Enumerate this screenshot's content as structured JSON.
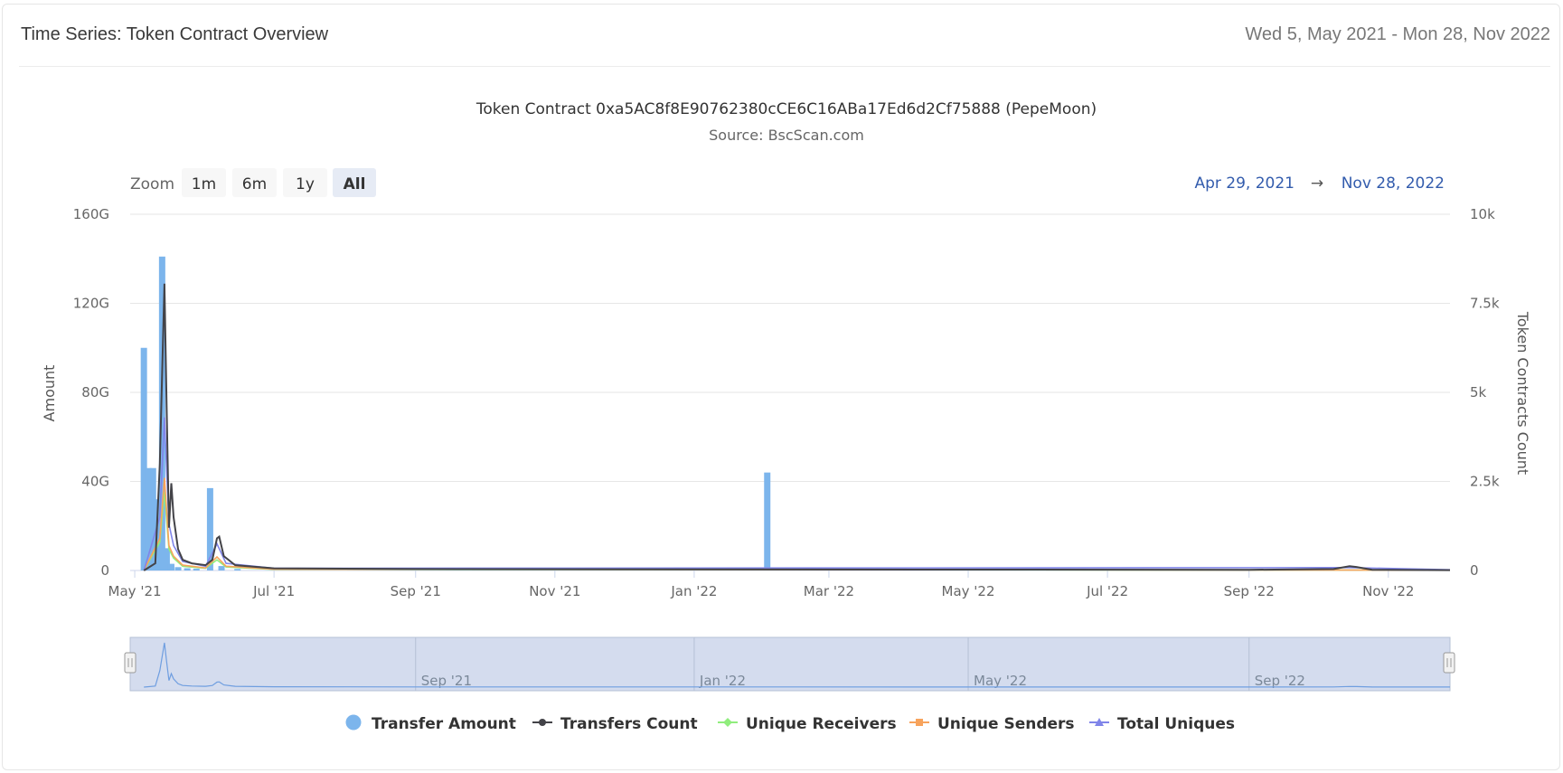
{
  "panel": {
    "title": "Time Series: Token Contract Overview",
    "date_range": "Wed 5, May 2021 - Mon 28, Nov 2022"
  },
  "zoom": {
    "label": "Zoom",
    "buttons": [
      "1m",
      "6m",
      "1y",
      "All"
    ],
    "selected": "All"
  },
  "range_selector": {
    "from": "Apr 29, 2021",
    "arrow": "→",
    "to": "Nov 28, 2022"
  },
  "navigator": {
    "labels": [
      "Sep '21",
      "Jan '22",
      "May '22",
      "Sep '22"
    ]
  },
  "colors": {
    "transfer_amount": "#7cb5ec",
    "transfers_count": "#434348",
    "unique_receivers": "#90ed7d",
    "unique_senders": "#f7a35c",
    "total_uniques": "#8085e9"
  },
  "chart_data": {
    "type": "bar",
    "title": "Token Contract 0xa5AC8f8E90762380cCE6C16ABa17Ed6d2Cf75888 (PepeMoon)",
    "subtitle": "Source: BscScan.com",
    "x_start": "2021-04-29",
    "x_end": "2022-11-28",
    "x_tick_labels": [
      "May '21",
      "Jul '21",
      "Sep '21",
      "Nov '21",
      "Jan '22",
      "Mar '22",
      "May '22",
      "Jul '22",
      "Sep '22",
      "Nov '22"
    ],
    "y_left": {
      "label": "Amount",
      "range": [
        0,
        160000000000
      ],
      "tick_labels": [
        "0",
        "40G",
        "80G",
        "120G",
        "160G"
      ]
    },
    "y_right": {
      "label": "Token Contracts Count",
      "range": [
        0,
        10000
      ],
      "tick_labels": [
        "0",
        "2.5k",
        "5k",
        "7.5k",
        "10k"
      ]
    },
    "grid": true,
    "legend_position": "bottom-center",
    "series": [
      {
        "name": "Transfer Amount",
        "type": "column",
        "axis": "left",
        "points": [
          [
            "2021-05-05",
            100000000000
          ],
          [
            "2021-05-07",
            46000000000
          ],
          [
            "2021-05-09",
            46000000000
          ],
          [
            "2021-05-11",
            32000000000
          ],
          [
            "2021-05-13",
            141000000000
          ],
          [
            "2021-05-15",
            10000000000
          ],
          [
            "2021-05-17",
            3000000000
          ],
          [
            "2021-05-20",
            1500000000
          ],
          [
            "2021-05-24",
            1000000000
          ],
          [
            "2021-05-28",
            800000000
          ],
          [
            "2021-06-03",
            37000000000
          ],
          [
            "2021-06-08",
            2000000000
          ],
          [
            "2021-06-15",
            700000000
          ],
          [
            "2022-02-02",
            44000000000
          ]
        ]
      },
      {
        "name": "Transfers Count",
        "type": "line",
        "axis": "right",
        "points": [
          [
            "2021-05-05",
            0
          ],
          [
            "2021-05-10",
            200
          ],
          [
            "2021-05-12",
            3000
          ],
          [
            "2021-05-14",
            8050
          ],
          [
            "2021-05-15",
            4500
          ],
          [
            "2021-05-16",
            1200
          ],
          [
            "2021-05-17",
            2450
          ],
          [
            "2021-05-18",
            1500
          ],
          [
            "2021-05-20",
            600
          ],
          [
            "2021-05-22",
            300
          ],
          [
            "2021-05-26",
            200
          ],
          [
            "2021-06-01",
            150
          ],
          [
            "2021-06-04",
            300
          ],
          [
            "2021-06-06",
            900
          ],
          [
            "2021-06-07",
            950
          ],
          [
            "2021-06-09",
            400
          ],
          [
            "2021-06-14",
            150
          ],
          [
            "2021-07-01",
            60
          ],
          [
            "2021-09-01",
            40
          ],
          [
            "2022-01-01",
            30
          ],
          [
            "2022-09-01",
            20
          ],
          [
            "2022-10-08",
            40
          ],
          [
            "2022-10-15",
            120
          ],
          [
            "2022-10-18",
            100
          ],
          [
            "2022-10-25",
            20
          ],
          [
            "2022-11-28",
            10
          ]
        ]
      },
      {
        "name": "Unique Receivers",
        "type": "line",
        "axis": "right",
        "points": [
          [
            "2021-05-05",
            0
          ],
          [
            "2021-05-12",
            800
          ],
          [
            "2021-05-14",
            2200
          ],
          [
            "2021-05-16",
            600
          ],
          [
            "2021-05-18",
            350
          ],
          [
            "2021-05-22",
            120
          ],
          [
            "2021-06-01",
            60
          ],
          [
            "2021-06-06",
            300
          ],
          [
            "2021-06-10",
            100
          ],
          [
            "2021-07-01",
            30
          ],
          [
            "2022-11-28",
            10
          ]
        ]
      },
      {
        "name": "Unique Senders",
        "type": "line",
        "axis": "right",
        "points": [
          [
            "2021-05-05",
            0
          ],
          [
            "2021-05-12",
            900
          ],
          [
            "2021-05-14",
            2600
          ],
          [
            "2021-05-16",
            700
          ],
          [
            "2021-05-18",
            400
          ],
          [
            "2021-05-22",
            150
          ],
          [
            "2021-06-01",
            70
          ],
          [
            "2021-06-06",
            380
          ],
          [
            "2021-06-10",
            120
          ],
          [
            "2021-07-01",
            35
          ],
          [
            "2022-11-28",
            10
          ]
        ]
      },
      {
        "name": "Total Uniques",
        "type": "line",
        "axis": "right",
        "points": [
          [
            "2021-05-05",
            0
          ],
          [
            "2021-05-12",
            1500
          ],
          [
            "2021-05-14",
            4300
          ],
          [
            "2021-05-16",
            1300
          ],
          [
            "2021-05-18",
            700
          ],
          [
            "2021-05-22",
            250
          ],
          [
            "2021-06-01",
            120
          ],
          [
            "2021-06-06",
            750
          ],
          [
            "2021-06-10",
            200
          ],
          [
            "2021-07-01",
            60
          ],
          [
            "2022-10-15",
            80
          ],
          [
            "2022-11-28",
            20
          ]
        ]
      }
    ]
  }
}
